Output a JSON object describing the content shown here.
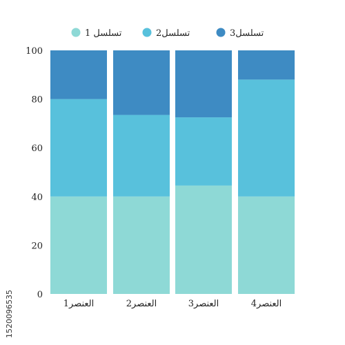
{
  "chart_data": {
    "type": "bar",
    "stacked": true,
    "categories": [
      "العنصر1",
      "العنصر2",
      "العنصر3",
      "العنصر4"
    ],
    "series": [
      {
        "name": "تسلسل 1",
        "color": "#8ed9d6",
        "values": [
          40,
          40,
          44.5,
          40
        ]
      },
      {
        "name": "تسلسل2",
        "color": "#58c1dc",
        "values": [
          40,
          33.5,
          28,
          48
        ]
      },
      {
        "name": "تسلسل3",
        "color": "#3e8bc3",
        "values": [
          20,
          26.5,
          27.5,
          12
        ]
      }
    ],
    "yticks": [
      "0",
      "20",
      "40",
      "60",
      "80",
      "100"
    ],
    "ylim": [
      0,
      100
    ],
    "grid": false,
    "legend_position": "top-center",
    "title": "",
    "xlabel": "",
    "ylabel": ""
  },
  "watermark": {
    "side_text": "1520096535"
  }
}
